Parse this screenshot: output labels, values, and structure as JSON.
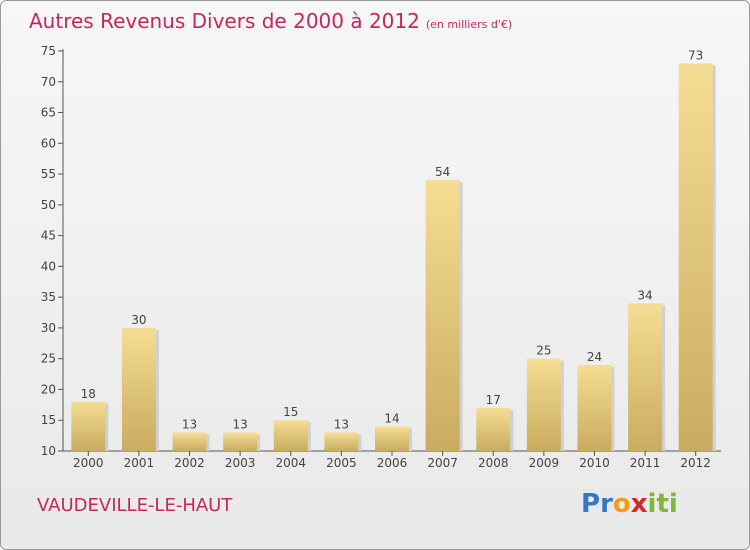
{
  "title": "Autres Revenus Divers de 2000 à 2012",
  "subtitle": "(en milliers d'€)",
  "place": "VAUDEVILLE-LE-HAUT",
  "logo": {
    "text": "Proxiti",
    "letters": [
      "P",
      "r",
      "o",
      "x",
      "i",
      "t",
      "i"
    ],
    "colors": [
      "#2f79c6",
      "#2f79c6",
      "#f29a1a",
      "#d6262c",
      "#7db73b",
      "#7db73b",
      "#7db73b"
    ]
  },
  "colors": {
    "title": "#c4275c",
    "bar_light": "#f6df97",
    "bar_dark": "#c8ab5c",
    "axis": "#555555"
  },
  "chart_data": {
    "type": "bar",
    "categories": [
      "2000",
      "2001",
      "2002",
      "2003",
      "2004",
      "2005",
      "2006",
      "2007",
      "2008",
      "2009",
      "2010",
      "2011",
      "2012"
    ],
    "values": [
      18,
      30,
      13,
      13,
      15,
      13,
      14,
      54,
      17,
      25,
      24,
      34,
      73
    ],
    "ylim": [
      10,
      75
    ],
    "yticks": [
      10,
      15,
      20,
      25,
      30,
      35,
      40,
      45,
      50,
      55,
      60,
      65,
      70,
      75
    ],
    "grid": false
  }
}
